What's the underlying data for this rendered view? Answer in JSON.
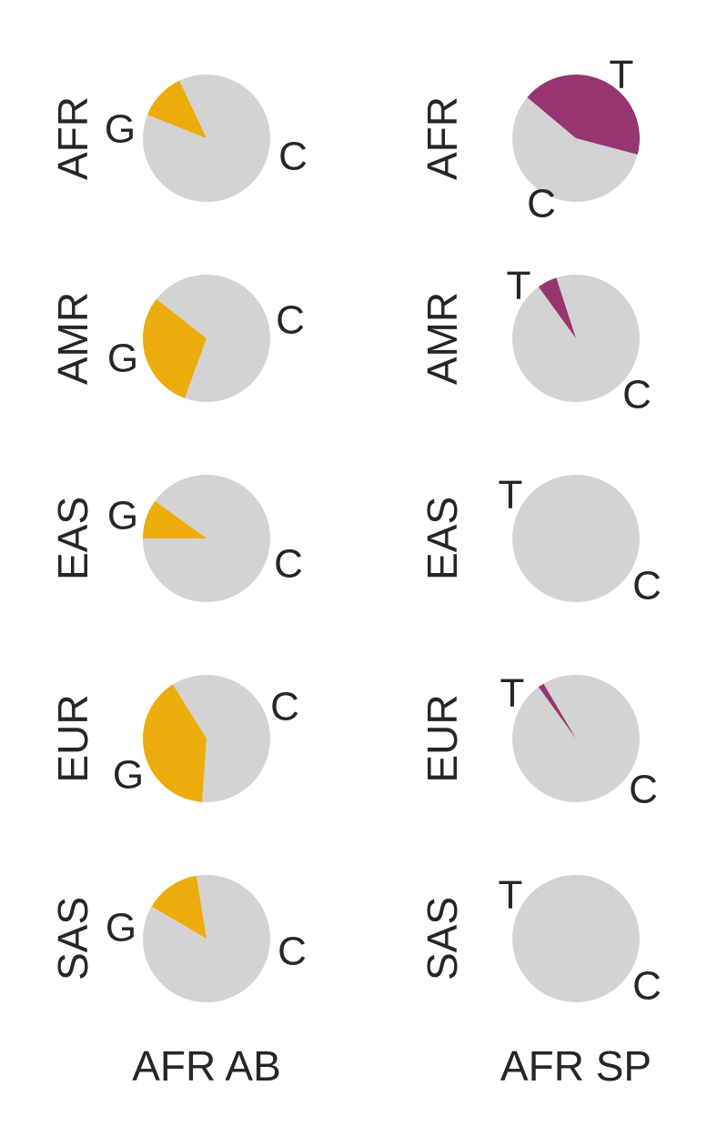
{
  "chart_data": [
    {
      "type": "pie",
      "column": "AFR AB",
      "row": "AFR",
      "labels": [
        "C",
        "G"
      ],
      "values": [
        0.88,
        0.12
      ],
      "colors": [
        "#d3d3d3",
        "#ebac0c"
      ]
    },
    {
      "type": "pie",
      "column": "AFR AB",
      "row": "AMR",
      "labels": [
        "C",
        "G"
      ],
      "values": [
        0.7,
        0.3
      ],
      "colors": [
        "#d3d3d3",
        "#ebac0c"
      ]
    },
    {
      "type": "pie",
      "column": "AFR AB",
      "row": "EAS",
      "labels": [
        "C",
        "G"
      ],
      "values": [
        0.9,
        0.1
      ],
      "colors": [
        "#d3d3d3",
        "#ebac0c"
      ]
    },
    {
      "type": "pie",
      "column": "AFR AB",
      "row": "EUR",
      "labels": [
        "C",
        "G"
      ],
      "values": [
        0.6,
        0.4
      ],
      "colors": [
        "#d3d3d3",
        "#ebac0c"
      ]
    },
    {
      "type": "pie",
      "column": "AFR AB",
      "row": "SAS",
      "labels": [
        "C",
        "G"
      ],
      "values": [
        0.86,
        0.14
      ],
      "colors": [
        "#d3d3d3",
        "#ebac0c"
      ]
    },
    {
      "type": "pie",
      "column": "AFR SP",
      "row": "AFR",
      "labels": [
        "C",
        "T"
      ],
      "values": [
        0.57,
        0.43
      ],
      "colors": [
        "#d3d3d3",
        "#963570"
      ]
    },
    {
      "type": "pie",
      "column": "AFR SP",
      "row": "AMR",
      "labels": [
        "C",
        "T"
      ],
      "values": [
        0.95,
        0.05
      ],
      "colors": [
        "#d3d3d3",
        "#963570"
      ]
    },
    {
      "type": "pie",
      "column": "AFR SP",
      "row": "EAS",
      "labels": [
        "C",
        "T"
      ],
      "values": [
        1.0,
        0.0
      ],
      "colors": [
        "#d3d3d3",
        "#963570"
      ]
    },
    {
      "type": "pie",
      "column": "AFR SP",
      "row": "EUR",
      "labels": [
        "C",
        "T"
      ],
      "values": [
        0.985,
        0.015
      ],
      "colors": [
        "#d3d3d3",
        "#963570"
      ]
    },
    {
      "type": "pie",
      "column": "AFR SP",
      "row": "SAS",
      "labels": [
        "C",
        "T"
      ],
      "values": [
        1.0,
        0.0
      ],
      "colors": [
        "#d3d3d3",
        "#963570"
      ]
    }
  ],
  "columns": [
    "AFR AB",
    "AFR SP"
  ],
  "rows": [
    "AFR",
    "AMR",
    "EAS",
    "EUR",
    "SAS"
  ]
}
